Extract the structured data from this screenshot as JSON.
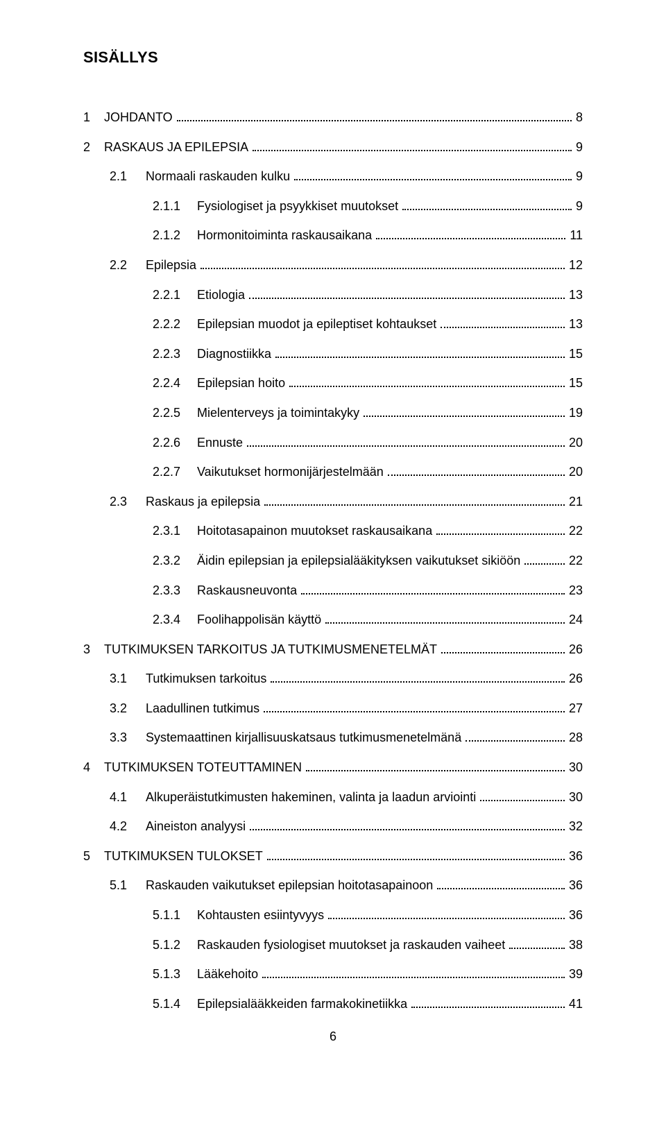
{
  "heading": "SISÄLLYS",
  "pageNumber": "6",
  "toc": [
    {
      "level": 1,
      "num": "1",
      "label": "JOHDANTO",
      "page": "8"
    },
    {
      "level": 1,
      "num": "2",
      "label": "RASKAUS JA EPILEPSIA",
      "page": "9"
    },
    {
      "level": 2,
      "num": "2.1",
      "label": "Normaali raskauden kulku",
      "page": "9"
    },
    {
      "level": 3,
      "num": "2.1.1",
      "label": "Fysiologiset ja psyykkiset muutokset",
      "page": "9"
    },
    {
      "level": 3,
      "num": "2.1.2",
      "label": "Hormonitoiminta raskausaikana",
      "page": "11"
    },
    {
      "level": 2,
      "num": "2.2",
      "label": "Epilepsia",
      "page": "12"
    },
    {
      "level": 3,
      "num": "2.2.1",
      "label": "Etiologia",
      "page": "13"
    },
    {
      "level": 3,
      "num": "2.2.2",
      "label": "Epilepsian muodot ja epileptiset kohtaukset",
      "page": "13"
    },
    {
      "level": 3,
      "num": "2.2.3",
      "label": "Diagnostiikka",
      "page": "15"
    },
    {
      "level": 3,
      "num": "2.2.4",
      "label": "Epilepsian hoito",
      "page": "15"
    },
    {
      "level": 3,
      "num": "2.2.5",
      "label": "Mielenterveys ja toimintakyky",
      "page": "19"
    },
    {
      "level": 3,
      "num": "2.2.6",
      "label": "Ennuste",
      "page": "20"
    },
    {
      "level": 3,
      "num": "2.2.7",
      "label": "Vaikutukset hormonijärjestelmään",
      "page": "20"
    },
    {
      "level": 2,
      "num": "2.3",
      "label": "Raskaus ja epilepsia",
      "page": "21"
    },
    {
      "level": 3,
      "num": "2.3.1",
      "label": "Hoitotasapainon muutokset raskausaikana",
      "page": "22"
    },
    {
      "level": 3,
      "num": "2.3.2",
      "label": "Äidin epilepsian ja epilepsialääkityksen vaikutukset sikiöön",
      "page": "22"
    },
    {
      "level": 3,
      "num": "2.3.3",
      "label": "Raskausneuvonta",
      "page": "23"
    },
    {
      "level": 3,
      "num": "2.3.4",
      "label": "Foolihappolisän käyttö",
      "page": "24"
    },
    {
      "level": 1,
      "num": "3",
      "label": "TUTKIMUKSEN TARKOITUS JA TUTKIMUSMENETELMÄT",
      "page": "26"
    },
    {
      "level": 2,
      "num": "3.1",
      "label": "Tutkimuksen tarkoitus",
      "page": "26"
    },
    {
      "level": 2,
      "num": "3.2",
      "label": "Laadullinen tutkimus",
      "page": "27"
    },
    {
      "level": 2,
      "num": "3.3",
      "label": "Systemaattinen kirjallisuuskatsaus tutkimusmenetelmänä",
      "page": "28"
    },
    {
      "level": 1,
      "num": "4",
      "label": "TUTKIMUKSEN TOTEUTTAMINEN",
      "page": "30"
    },
    {
      "level": 2,
      "num": "4.1",
      "label": "Alkuperäistutkimusten hakeminen, valinta ja laadun arviointi",
      "page": "30"
    },
    {
      "level": 2,
      "num": "4.2",
      "label": "Aineiston analyysi",
      "page": "32"
    },
    {
      "level": 1,
      "num": "5",
      "label": "TUTKIMUKSEN TULOKSET",
      "page": "36"
    },
    {
      "level": 2,
      "num": "5.1",
      "label": "Raskauden vaikutukset epilepsian hoitotasapainoon",
      "page": "36"
    },
    {
      "level": 3,
      "num": "5.1.1",
      "label": "Kohtausten esiintyvyys",
      "page": "36"
    },
    {
      "level": 3,
      "num": "5.1.2",
      "label": "Raskauden fysiologiset muutokset ja raskauden vaiheet",
      "page": "38"
    },
    {
      "level": 3,
      "num": "5.1.3",
      "label": "Lääkehoito",
      "page": "39"
    },
    {
      "level": 3,
      "num": "5.1.4",
      "label": "Epilepsialääkkeiden farmakokinetiikka",
      "page": "41"
    }
  ]
}
